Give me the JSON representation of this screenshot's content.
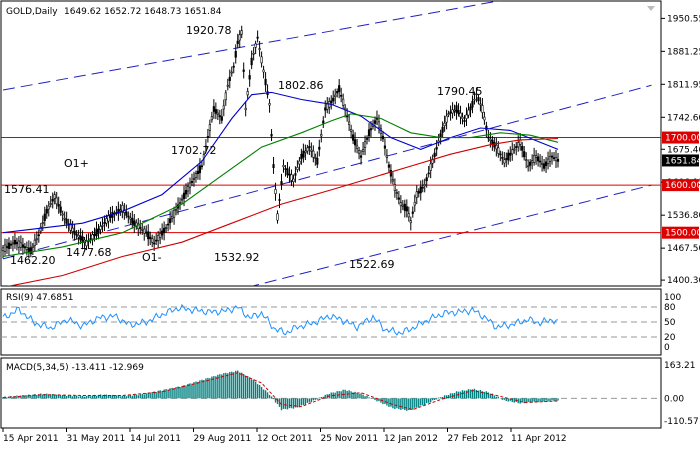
{
  "header": {
    "symbol_label": "GOLD,Daily",
    "ohlc_values": "1649.62 1652.72 1648.73 1651.84"
  },
  "colors": {
    "candle": "#000000",
    "ma_fast": "#0000cc",
    "ma_mid": "#008000",
    "ma_slow": "#cc0000",
    "channel": "#2020c0",
    "level_line": "#dd0000",
    "level_label_bg": "#dd0000",
    "price_label_bg": "#000000",
    "rsi": "#1e90ff",
    "macd_hist": "#008080",
    "macd_signal": "#cc0000"
  },
  "chart_data": [
    {
      "type": "candlestick",
      "name": "price",
      "ylim": [
        1390,
        1985
      ],
      "y_ticks": [
        "1950.55",
        "1881.25",
        "1811.95",
        "1742.60",
        "1675.40",
        "1606.15",
        "1536.80",
        "1467.50",
        "1400.30"
      ],
      "x_ticks": [
        "15 Apr 2011",
        "31 May 2011",
        "14 Jul 2011",
        "29 Aug 2011",
        "12 Oct 2011",
        "25 Nov 2011",
        "12 Jan 2012",
        "27 Feb 2012",
        "11 Apr 2012"
      ],
      "current_price": "1651.84",
      "horizontal_levels": [
        {
          "value": 1700,
          "label": "1700.00"
        },
        {
          "value": 1600,
          "label": "1600.00"
        },
        {
          "value": 1500,
          "label": "1500.00"
        }
      ],
      "annotations": [
        {
          "text": "1920.78",
          "value": 1920.78
        },
        {
          "text": "1802.86",
          "value": 1802.86
        },
        {
          "text": "1790.45",
          "value": 1790.45
        },
        {
          "text": "1702.72",
          "value": 1702.72
        },
        {
          "text": "1576.41",
          "value": 1576.41
        },
        {
          "text": "1532.92",
          "value": 1532.92
        },
        {
          "text": "1522.69",
          "value": 1522.69
        },
        {
          "text": "1477.68",
          "value": 1477.68
        },
        {
          "text": "1462.20",
          "value": 1462.2
        },
        {
          "text": "O1+"
        },
        {
          "text": "O1-"
        }
      ],
      "path_points": [
        [
          0,
          1465
        ],
        [
          6,
          1480
        ],
        [
          10,
          1472
        ],
        [
          14,
          1462
        ],
        [
          18,
          1495
        ],
        [
          22,
          1545
        ],
        [
          26,
          1576
        ],
        [
          31,
          1530
        ],
        [
          36,
          1500
        ],
        [
          42,
          1478
        ],
        [
          48,
          1505
        ],
        [
          54,
          1535
        ],
        [
          60,
          1550
        ],
        [
          66,
          1520
        ],
        [
          72,
          1500
        ],
        [
          76,
          1478
        ],
        [
          82,
          1510
        ],
        [
          88,
          1555
        ],
        [
          94,
          1600
        ],
        [
          100,
          1640
        ],
        [
          103,
          1702
        ],
        [
          106,
          1760
        ],
        [
          110,
          1740
        ],
        [
          113,
          1810
        ],
        [
          116,
          1850
        ],
        [
          118,
          1900
        ],
        [
          120,
          1921
        ],
        [
          122,
          1760
        ],
        [
          125,
          1860
        ],
        [
          128,
          1910
        ],
        [
          131,
          1840
        ],
        [
          134,
          1770
        ],
        [
          136,
          1640
        ],
        [
          138,
          1533
        ],
        [
          141,
          1640
        ],
        [
          146,
          1610
        ],
        [
          150,
          1660
        ],
        [
          154,
          1680
        ],
        [
          158,
          1650
        ],
        [
          162,
          1760
        ],
        [
          166,
          1780
        ],
        [
          169,
          1803
        ],
        [
          172,
          1760
        ],
        [
          176,
          1700
        ],
        [
          180,
          1660
        ],
        [
          184,
          1710
        ],
        [
          188,
          1740
        ],
        [
          191,
          1700
        ],
        [
          194,
          1640
        ],
        [
          197,
          1595
        ],
        [
          200,
          1560
        ],
        [
          203,
          1550
        ],
        [
          205,
          1523
        ],
        [
          208,
          1580
        ],
        [
          212,
          1600
        ],
        [
          216,
          1650
        ],
        [
          220,
          1705
        ],
        [
          224,
          1750
        ],
        [
          228,
          1760
        ],
        [
          232,
          1735
        ],
        [
          236,
          1770
        ],
        [
          238,
          1791
        ],
        [
          241,
          1760
        ],
        [
          244,
          1700
        ],
        [
          248,
          1680
        ],
        [
          252,
          1650
        ],
        [
          256,
          1670
        ],
        [
          260,
          1690
        ],
        [
          264,
          1640
        ],
        [
          268,
          1660
        ],
        [
          272,
          1640
        ],
        [
          276,
          1660
        ],
        [
          279,
          1652
        ]
      ],
      "moving_averages": [
        {
          "key": "ma_fast",
          "points": [
            [
              0,
              1500
            ],
            [
              20,
              1510
            ],
            [
              40,
              1520
            ],
            [
              60,
              1545
            ],
            [
              80,
              1580
            ],
            [
              100,
              1650
            ],
            [
              115,
              1740
            ],
            [
              125,
              1790
            ],
            [
              135,
              1795
            ],
            [
              150,
              1780
            ],
            [
              165,
              1770
            ],
            [
              180,
              1745
            ],
            [
              195,
              1700
            ],
            [
              210,
              1675
            ],
            [
              225,
              1700
            ],
            [
              240,
              1720
            ],
            [
              255,
              1715
            ],
            [
              270,
              1690
            ],
            [
              279,
              1675
            ]
          ]
        },
        {
          "key": "ma_mid",
          "points": [
            [
              0,
              1450
            ],
            [
              30,
              1470
            ],
            [
              60,
              1500
            ],
            [
              90,
              1560
            ],
            [
              110,
              1620
            ],
            [
              130,
              1680
            ],
            [
              150,
              1710
            ],
            [
              165,
              1735
            ],
            [
              175,
              1750
            ],
            [
              190,
              1740
            ],
            [
              205,
              1710
            ],
            [
              220,
              1700
            ],
            [
              235,
              1700
            ],
            [
              250,
              1710
            ],
            [
              265,
              1705
            ],
            [
              279,
              1690
            ]
          ]
        },
        {
          "key": "ma_slow",
          "points": [
            [
              0,
              1385
            ],
            [
              30,
              1410
            ],
            [
              60,
              1450
            ],
            [
              90,
              1480
            ],
            [
              115,
              1520
            ],
            [
              140,
              1560
            ],
            [
              165,
              1590
            ],
            [
              185,
              1615
            ],
            [
              205,
              1640
            ],
            [
              225,
              1665
            ],
            [
              245,
              1685
            ],
            [
              260,
              1695
            ],
            [
              279,
              1698
            ]
          ]
        }
      ],
      "channel_lines": [
        {
          "from": [
            0,
            1800
          ],
          "to": [
            326,
            2045
          ]
        },
        {
          "from": [
            0,
            1445
          ],
          "to": [
            326,
            1810
          ]
        },
        {
          "from": [
            0,
            1255
          ],
          "to": [
            326,
            1600
          ]
        }
      ]
    },
    {
      "type": "line",
      "name": "RSI(9)",
      "header_label": "RSI(9) 47.6851",
      "ylim": [
        0,
        100
      ],
      "y_ticks": [
        "100",
        "80",
        "50",
        "20",
        "0"
      ],
      "reference_levels": [
        80,
        50,
        20
      ],
      "points": [
        [
          0,
          58
        ],
        [
          8,
          75
        ],
        [
          16,
          48
        ],
        [
          24,
          38
        ],
        [
          32,
          55
        ],
        [
          40,
          42
        ],
        [
          48,
          58
        ],
        [
          56,
          62
        ],
        [
          64,
          44
        ],
        [
          72,
          50
        ],
        [
          80,
          65
        ],
        [
          88,
          78
        ],
        [
          96,
          74
        ],
        [
          104,
          70
        ],
        [
          112,
          72
        ],
        [
          118,
          80
        ],
        [
          124,
          58
        ],
        [
          130,
          68
        ],
        [
          136,
          38
        ],
        [
          142,
          28
        ],
        [
          148,
          40
        ],
        [
          156,
          48
        ],
        [
          164,
          62
        ],
        [
          170,
          55
        ],
        [
          178,
          40
        ],
        [
          186,
          60
        ],
        [
          192,
          35
        ],
        [
          200,
          28
        ],
        [
          206,
          38
        ],
        [
          214,
          55
        ],
        [
          222,
          68
        ],
        [
          230,
          70
        ],
        [
          236,
          74
        ],
        [
          242,
          60
        ],
        [
          248,
          40
        ],
        [
          256,
          45
        ],
        [
          264,
          55
        ],
        [
          270,
          48
        ],
        [
          276,
          55
        ],
        [
          279,
          48
        ]
      ]
    },
    {
      "type": "bar",
      "name": "MACD(5,34,5)",
      "header_label": "MACD(5,34,5) -13.411 -12.969",
      "ylim": [
        -110.57,
        163.21
      ],
      "y_ticks": [
        "163.21",
        "0.00",
        "-110.57"
      ],
      "histogram": [
        [
          0,
          6
        ],
        [
          10,
          14
        ],
        [
          20,
          22
        ],
        [
          30,
          16
        ],
        [
          40,
          10
        ],
        [
          50,
          18
        ],
        [
          60,
          12
        ],
        [
          70,
          20
        ],
        [
          80,
          40
        ],
        [
          90,
          60
        ],
        [
          100,
          90
        ],
        [
          110,
          120
        ],
        [
          118,
          135
        ],
        [
          126,
          90
        ],
        [
          134,
          20
        ],
        [
          140,
          -55
        ],
        [
          148,
          -45
        ],
        [
          156,
          -12
        ],
        [
          164,
          24
        ],
        [
          172,
          42
        ],
        [
          180,
          22
        ],
        [
          188,
          -12
        ],
        [
          196,
          -48
        ],
        [
          204,
          -60
        ],
        [
          212,
          -30
        ],
        [
          220,
          6
        ],
        [
          228,
          32
        ],
        [
          236,
          46
        ],
        [
          244,
          30
        ],
        [
          252,
          -10
        ],
        [
          260,
          -24
        ],
        [
          268,
          -18
        ],
        [
          276,
          -12
        ],
        [
          279,
          -13
        ]
      ],
      "signal": [
        [
          0,
          4
        ],
        [
          20,
          18
        ],
        [
          40,
          14
        ],
        [
          60,
          14
        ],
        [
          80,
          32
        ],
        [
          100,
          80
        ],
        [
          118,
          125
        ],
        [
          130,
          75
        ],
        [
          140,
          -30
        ],
        [
          150,
          -40
        ],
        [
          164,
          12
        ],
        [
          180,
          28
        ],
        [
          196,
          -30
        ],
        [
          206,
          -55
        ],
        [
          220,
          -6
        ],
        [
          236,
          38
        ],
        [
          250,
          10
        ],
        [
          262,
          -20
        ],
        [
          279,
          -13
        ]
      ]
    }
  ]
}
